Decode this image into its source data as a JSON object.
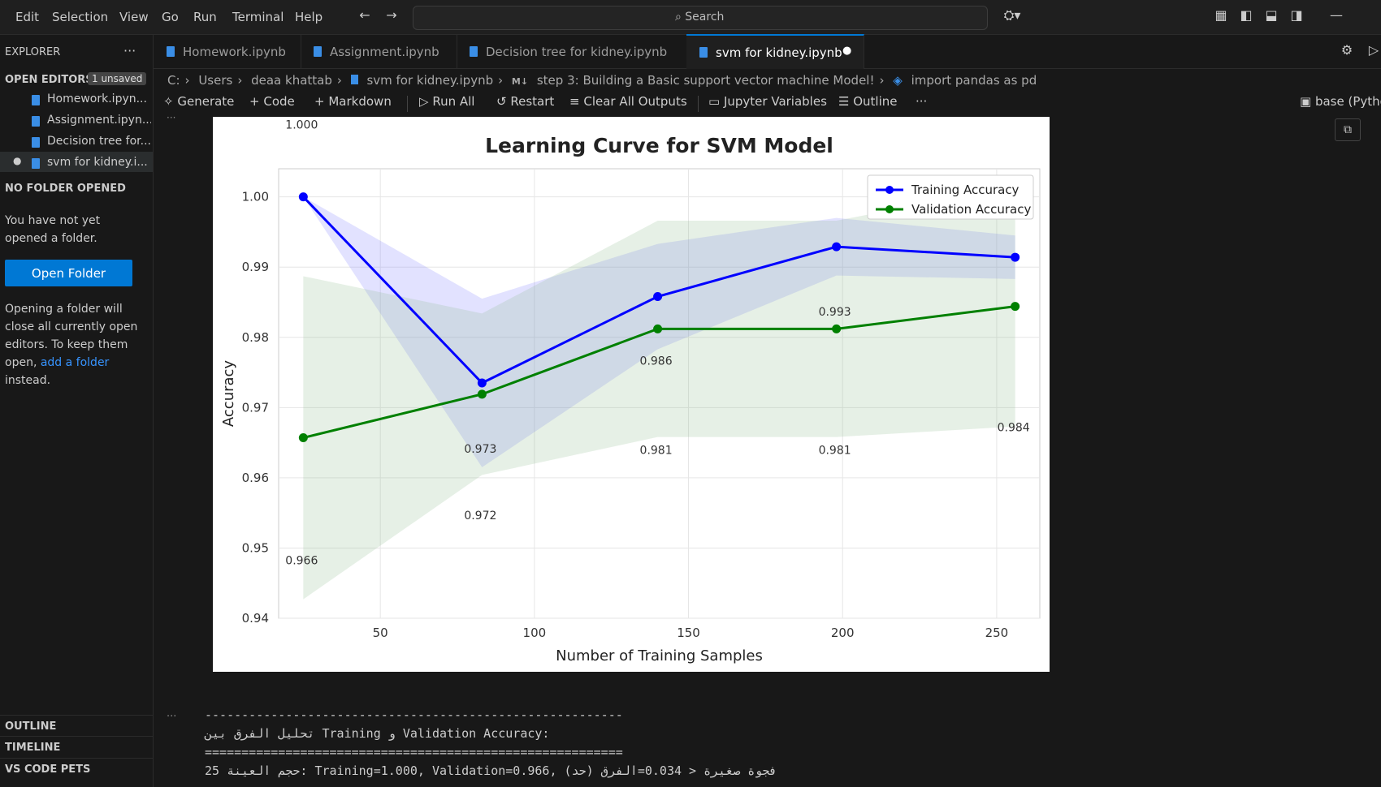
{
  "menu": [
    "Edit",
    "Selection",
    "View",
    "Go",
    "Run",
    "Terminal",
    "Help"
  ],
  "search": {
    "label": "Search"
  },
  "sidebar": {
    "title": "EXPLORER",
    "open_editors_label": "OPEN EDITORS",
    "unsaved_badge": "1 unsaved",
    "open_editors": [
      "Homework.ipyn...",
      "Assignment.ipyn...",
      "Decision tree for...",
      "svm for kidney.i..."
    ],
    "no_folder_label": "NO FOLDER OPENED",
    "no_folder_msg": "You have not yet opened a folder.",
    "open_folder_button": "Open Folder",
    "note_prefix": "Opening a folder will close all currently open editors. To keep them open, ",
    "note_link": "add a folder",
    "note_suffix": " instead.",
    "outline": "OUTLINE",
    "timeline": "TIMELINE",
    "pets": "VS CODE PETS"
  },
  "tabs": [
    {
      "label": "Homework.ipynb",
      "active": false
    },
    {
      "label": "Assignment.ipynb",
      "active": false
    },
    {
      "label": "Decision tree for kidney.ipynb",
      "active": false
    },
    {
      "label": "svm for kidney.ipynb",
      "active": true
    }
  ],
  "breadcrumb": [
    "C:",
    "Users",
    "deaa khattab",
    "svm for kidney.ipynb",
    "step 3: Building a Basic support vector machine Model!",
    "import pandas as pd"
  ],
  "toolbar": {
    "generate": "Generate",
    "code": "Code",
    "markdown": "Markdown",
    "run_all": "Run All",
    "restart": "Restart",
    "clear": "Clear All Outputs",
    "variables": "Jupyter Variables",
    "outline": "Outline",
    "kernel": "base (Pytho"
  },
  "chart_data": {
    "type": "line",
    "title": "Learning Curve for SVM Model",
    "xlabel": "Number of Training Samples",
    "ylabel": "Accuracy",
    "xlim": [
      17,
      264
    ],
    "ylim": [
      0.94,
      1.004
    ],
    "xticks": [
      50,
      100,
      150,
      200,
      250
    ],
    "yticks": [
      0.94,
      0.95,
      0.96,
      0.97,
      0.98,
      0.99,
      1.0
    ],
    "ytick_labels": [
      "0.94",
      "0.95",
      "0.96",
      "0.97",
      "0.98",
      "0.99",
      "1.00"
    ],
    "grid": true,
    "legend": "top-right",
    "x": [
      25,
      83,
      140,
      198,
      256
    ],
    "series": [
      {
        "name": "Training Accuracy",
        "color": "#0000ff",
        "values": [
          1.0,
          0.9735,
          0.9858,
          0.9929,
          0.9914
        ],
        "band_low": [
          1.0,
          0.9615,
          0.9783,
          0.9888,
          0.9883
        ],
        "band_high": [
          1.0,
          0.9855,
          0.9933,
          0.997,
          0.9945
        ],
        "band_color": "#7b7bff",
        "labels": [
          "1.000",
          "0.973",
          "0.986",
          "0.993",
          ""
        ]
      },
      {
        "name": "Validation Accuracy",
        "color": "#008000",
        "values": [
          0.9657,
          0.9719,
          0.9812,
          0.9812,
          0.9844
        ],
        "band_low": [
          0.9427,
          0.9604,
          0.9658,
          0.9658,
          0.9673
        ],
        "band_high": [
          0.9887,
          0.9834,
          0.9966,
          0.9966,
          1.0015
        ],
        "band_color": "#8fbc8f",
        "labels": [
          "0.966",
          "0.972",
          "0.981",
          "0.981",
          "0.984"
        ]
      }
    ]
  },
  "output": {
    "line1": "---------------------------------------------------------",
    "line2": "تحليل الفرق بين Training و Validation Accuracy:",
    "line3": "=========================================================",
    "line4": "25 حجم العينة: Training=1.000, Validation=0.966, (حد) فجوة صغيرة < 0.034=الفرق"
  }
}
